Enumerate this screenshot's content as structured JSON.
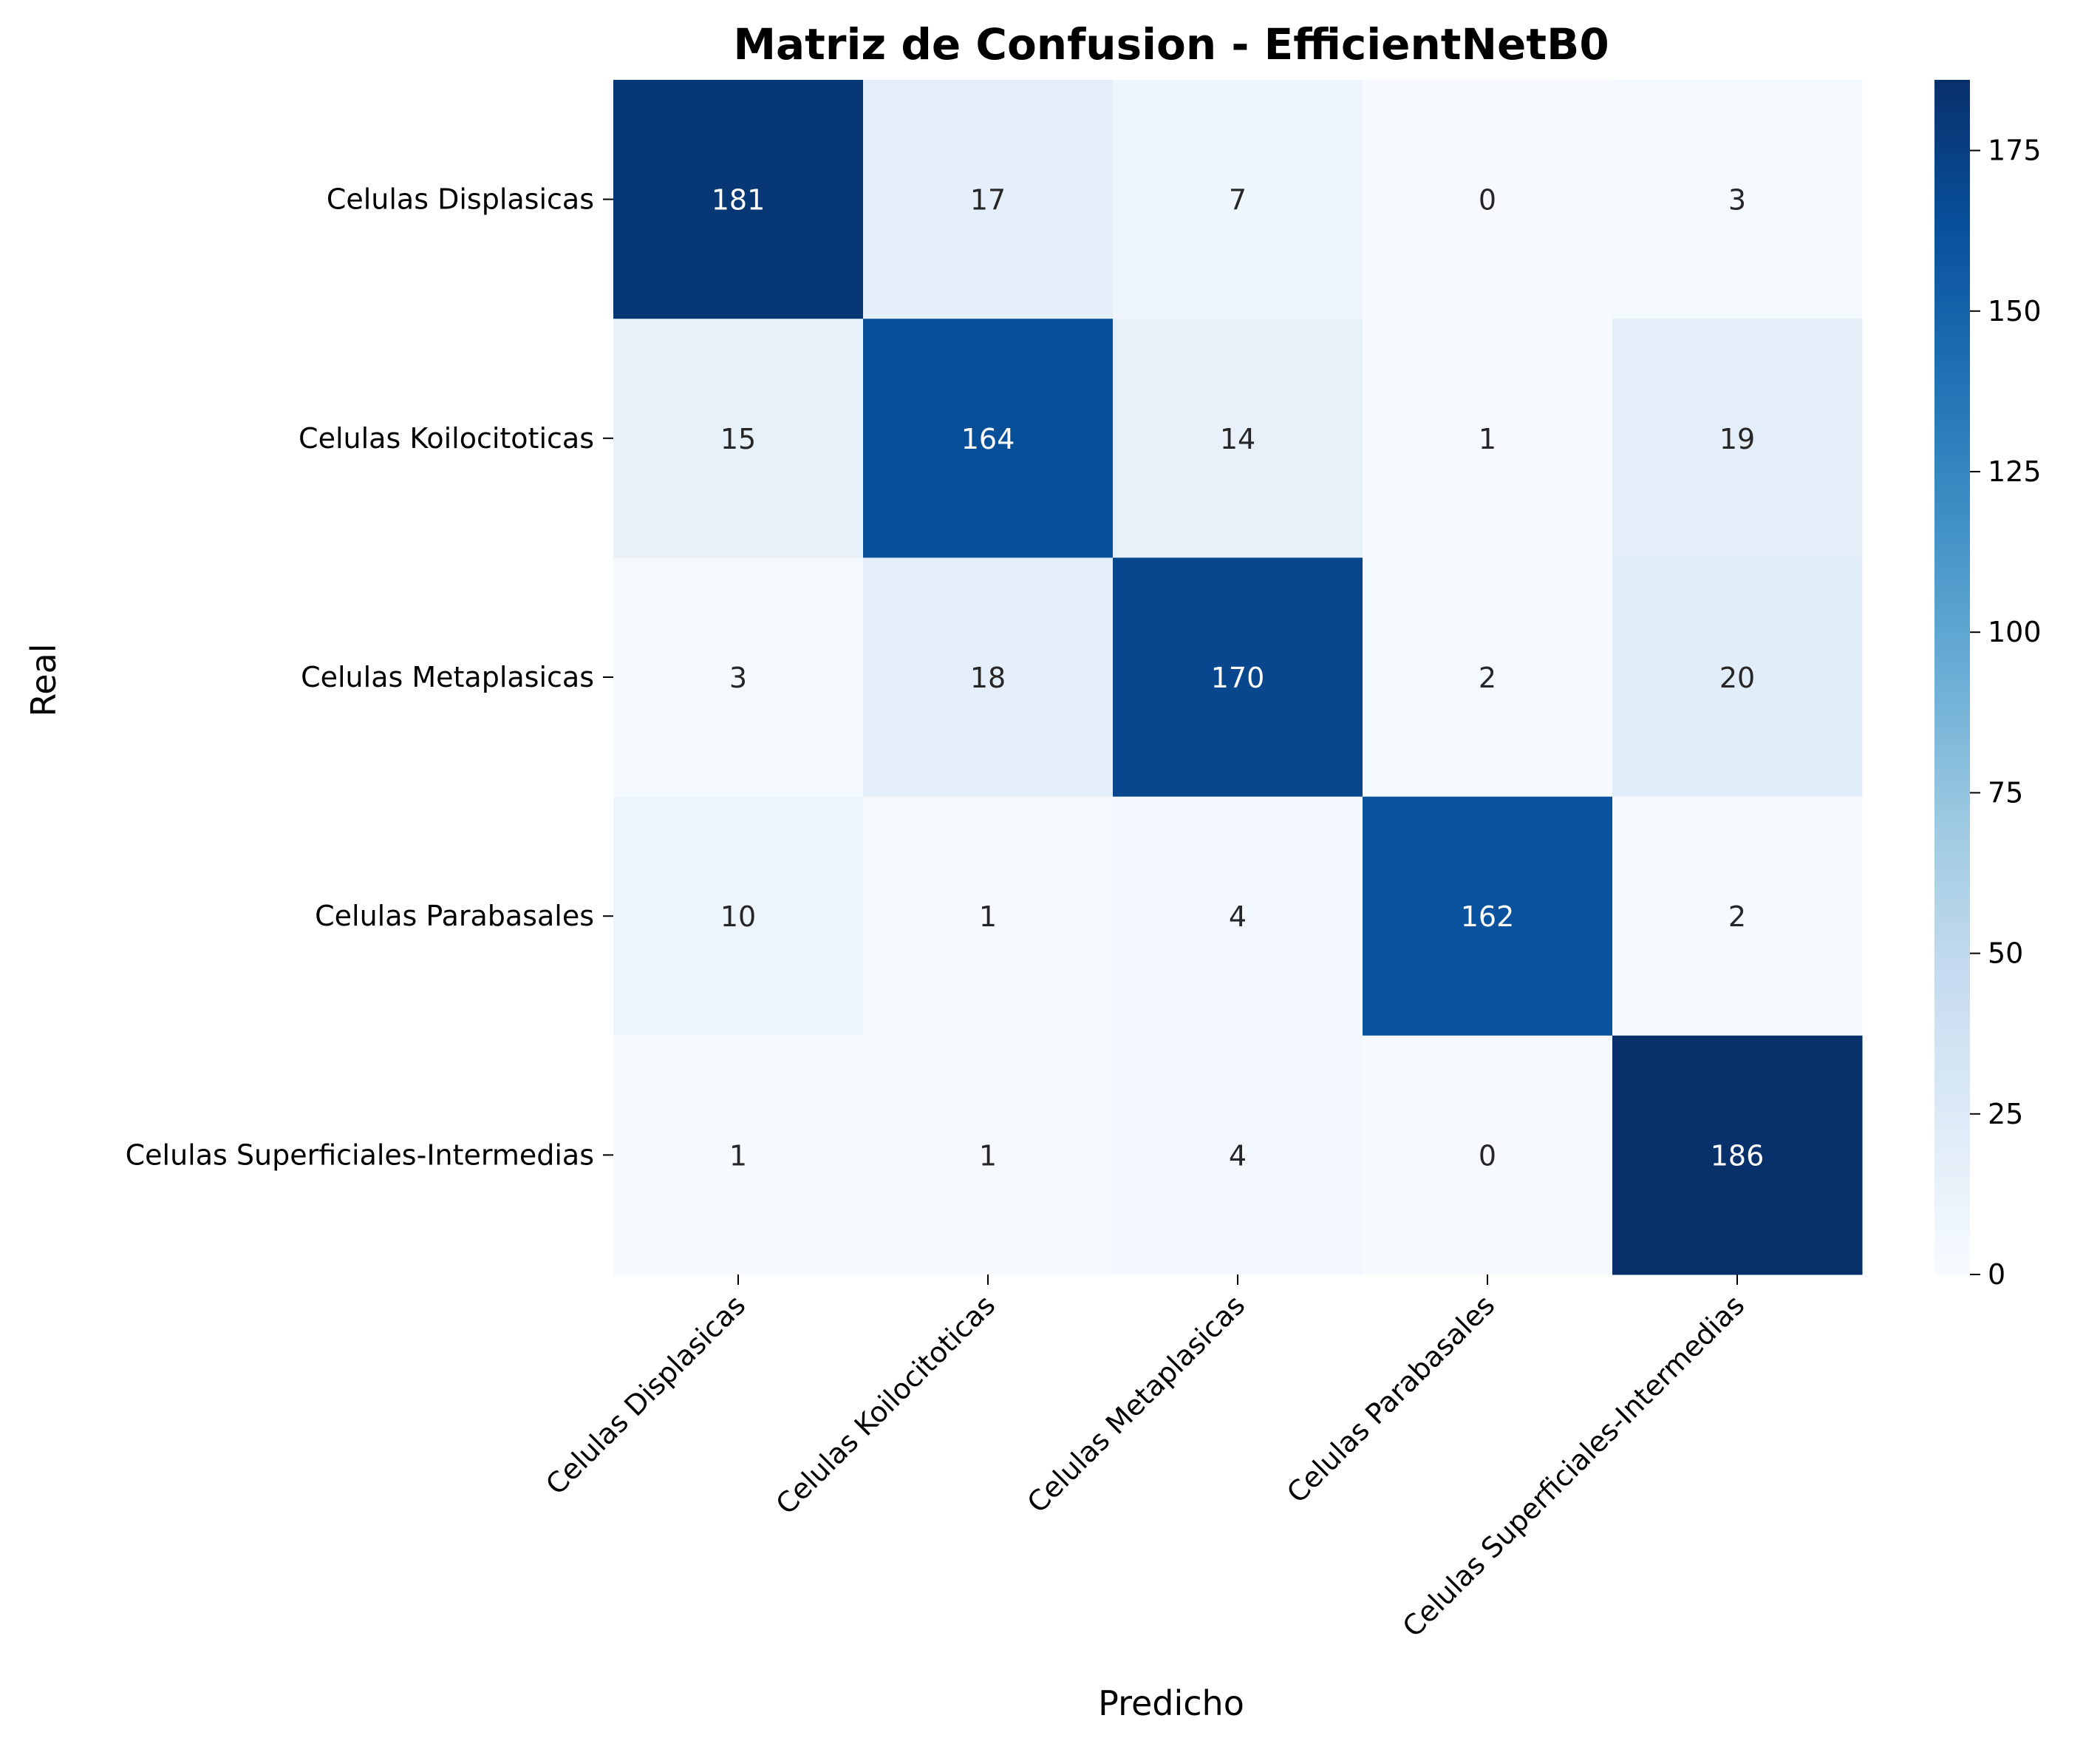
{
  "chart_data": {
    "type": "heatmap",
    "title": "Matriz de Confusion - EfficientNetB0",
    "xlabel": "Predicho",
    "ylabel": "Real",
    "row_labels": [
      "Celulas Displasicas",
      "Celulas Koilocitoticas",
      "Celulas Metaplasicas",
      "Celulas Parabasales",
      "Celulas Superficiales-Intermedias"
    ],
    "col_labels": [
      "Celulas Displasicas",
      "Celulas Koilocitoticas",
      "Celulas Metaplasicas",
      "Celulas Parabasales",
      "Celulas Superficiales-Intermedias"
    ],
    "values": [
      [
        181,
        17,
        7,
        0,
        3
      ],
      [
        15,
        164,
        14,
        1,
        19
      ],
      [
        3,
        18,
        170,
        2,
        20
      ],
      [
        10,
        1,
        4,
        162,
        2
      ],
      [
        1,
        1,
        4,
        0,
        186
      ]
    ],
    "colormap": "Blues",
    "vmin": 0,
    "vmax": 186,
    "colorbar_ticks": [
      0,
      25,
      50,
      75,
      100,
      125,
      150,
      175
    ]
  }
}
